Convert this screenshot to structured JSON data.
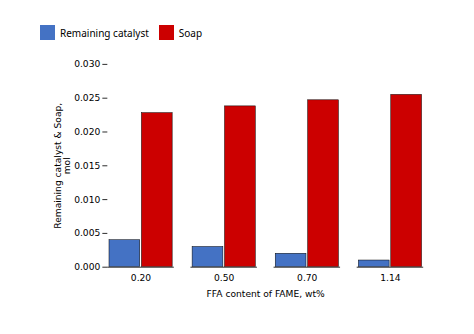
{
  "chart_data": {
    "type": "bar",
    "categories": [
      "0.20",
      "0.50",
      "0.70",
      "1.14"
    ],
    "series": [
      {
        "name": "Remaining catalyst",
        "color": "#4472C4",
        "values": [
          0.004,
          0.003,
          0.002,
          0.001
        ]
      },
      {
        "name": "Soap",
        "color": "#CC0000",
        "values": [
          0.0228,
          0.0238,
          0.0247,
          0.0255
        ]
      }
    ],
    "xlabel": "FFA content of FAME, wt%",
    "ylabel": "Remaining catalyst & Soap,\nmol",
    "ylim": [
      0,
      0.03
    ],
    "yticks": [
      {
        "value": 0,
        "label": "0.000"
      },
      {
        "value": 0.005,
        "label": "0.005"
      },
      {
        "value": 0.01,
        "label": "0.010"
      },
      {
        "value": 0.015,
        "label": "0.015"
      },
      {
        "value": 0.02,
        "label": "0.020"
      },
      {
        "value": 0.025,
        "label": "0.025"
      },
      {
        "value": 0.03,
        "label": "0.030"
      }
    ],
    "grid": false,
    "legend": "top"
  }
}
